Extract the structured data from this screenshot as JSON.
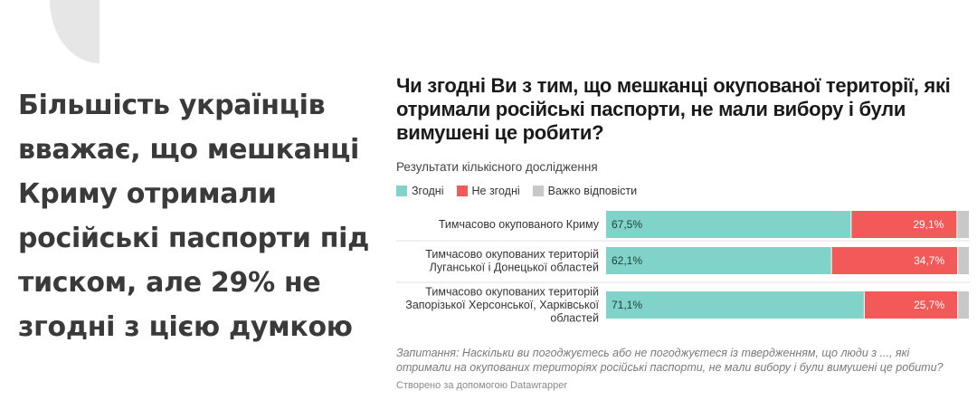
{
  "headline": "Більшість українців вважає, що мешканці Криму отримали російські паспорти під тиском, але 29% не згодні з цією думкою",
  "colors": {
    "agree": "#7fd3c8",
    "disagree": "#f25a5a",
    "hard": "#c8c8c8",
    "deco": "#e6e6e6"
  },
  "chart_data": {
    "type": "bar",
    "orientation": "horizontal",
    "stacked": true,
    "title": "Чи згодні Ви з тим, що мешканці окупованої території, які отримали російські паспорти, не мали вибору і були вимушені це робити?",
    "subtitle": "Результати кількісного дослідження",
    "legend_position": "top-left",
    "categories": [
      [
        "Тимчасово окупованого Криму"
      ],
      [
        "Тимчасово окупованих територій",
        "Луганської і Донецької областей"
      ],
      [
        "Тимчасово окупованих територій",
        "Запорізької Херсонської, Харківської",
        "областей"
      ]
    ],
    "series": [
      {
        "name": "Згодні",
        "values": [
          67.5,
          62.1,
          71.1
        ],
        "labels": [
          "67,5%",
          "62,1%",
          "71,1%"
        ]
      },
      {
        "name": "Не згодні",
        "values": [
          29.1,
          34.7,
          25.7
        ],
        "labels": [
          "29,1%",
          "34,7%",
          "25,7%"
        ]
      },
      {
        "name": "Важко відповісти",
        "values": [
          3.4,
          3.2,
          3.2
        ]
      }
    ],
    "xlim": [
      0,
      100
    ],
    "note": "Запитання: Наскільки ви погоджуєтесь або не погоджуєтеся із твердженням, що люди з ..., які отримали на окупованих територіях російські паспорти, не мали вибору і були вимушені це робити?",
    "credit": "Створено за допомогою Datawrapper"
  }
}
